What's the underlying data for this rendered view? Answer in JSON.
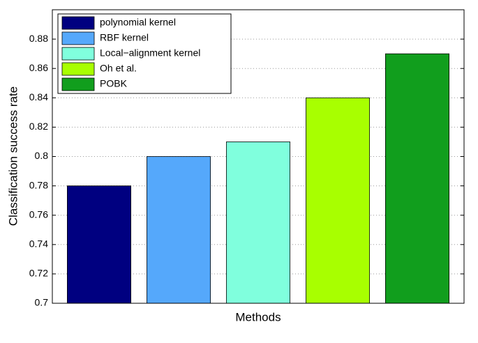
{
  "chart_data": {
    "type": "bar",
    "xlabel": "Methods",
    "ylabel": "Classification success rate",
    "series": [
      {
        "name": "polynomial kernel",
        "color": "#000080",
        "values": [
          0.78
        ]
      },
      {
        "name": "RBF kernel",
        "color": "#55a8fb",
        "values": [
          0.8
        ]
      },
      {
        "name": "Local−alignment kernel",
        "color": "#80ffdd",
        "values": [
          0.81
        ]
      },
      {
        "name": "Oh et al.",
        "color": "#a8ff00",
        "values": [
          0.84
        ]
      },
      {
        "name": "POBK",
        "color": "#119e1d",
        "values": [
          0.87
        ]
      }
    ],
    "ylim": [
      0.7,
      0.9
    ],
    "yticks": [
      0.7,
      0.72,
      0.74,
      0.76,
      0.78,
      0.8,
      0.82,
      0.84,
      0.86,
      0.88
    ],
    "grid": true,
    "legend": "upper-left"
  }
}
